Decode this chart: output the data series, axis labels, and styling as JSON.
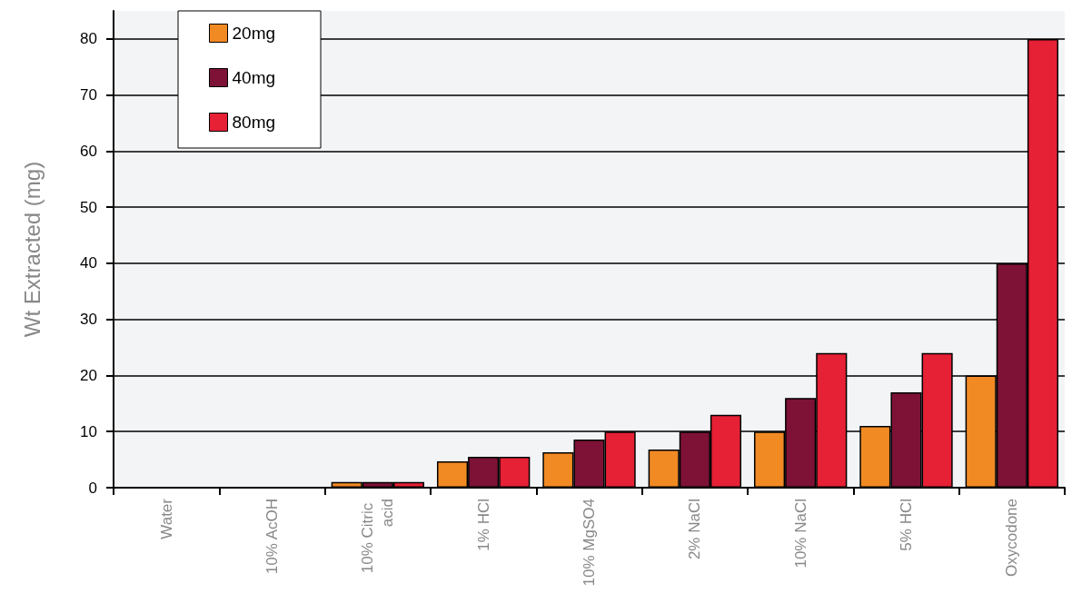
{
  "chart_data": {
    "type": "bar",
    "ylabel": "Wt Extracted (mg)",
    "categories": [
      "Water",
      "10% AcOH",
      "10% Citric acid",
      "1% HCl",
      "10% MgSO4",
      "2% NaCl",
      "10% NaCl",
      "5% HCl",
      "Oxycodone"
    ],
    "series": [
      {
        "name": "20mg",
        "color": "#f28a24",
        "values": [
          0,
          0,
          1,
          4.7,
          6.3,
          6.8,
          10,
          11,
          20
        ]
      },
      {
        "name": "40mg",
        "color": "#7d1236",
        "values": [
          0,
          0,
          1,
          5.5,
          8.6,
          10,
          16,
          17,
          40
        ]
      },
      {
        "name": "80mg",
        "color": "#e62035",
        "values": [
          0,
          0,
          1,
          5.5,
          10,
          13,
          24,
          24,
          80
        ]
      }
    ],
    "ylim": [
      0,
      85
    ],
    "yticks": [
      0,
      10,
      20,
      30,
      40,
      50,
      60,
      70,
      80
    ],
    "grid": "y",
    "legend": "top left"
  }
}
